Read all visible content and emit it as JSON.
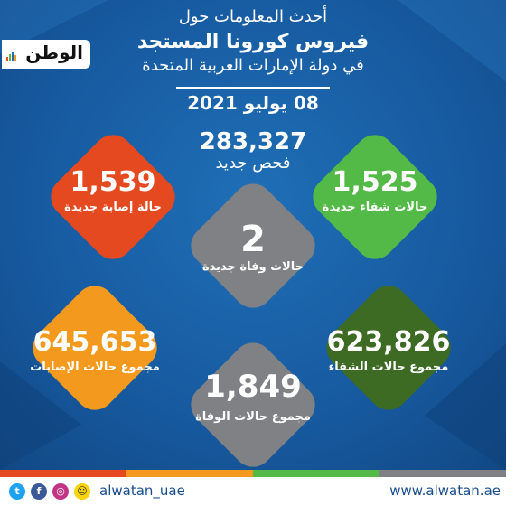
{
  "header": {
    "line1": "أحدث المعلومات حول",
    "line2": "فيروس كورونا المستجد",
    "line3": "في دولة الإمارات العربية المتحدة",
    "date": "08 يوليو 2021"
  },
  "logo": {
    "text": "الوطن"
  },
  "tests": {
    "value": "283,327",
    "label": "فحص جديد"
  },
  "cards": {
    "new_cases": {
      "value": "1,539",
      "label": "حالة إصابة جديدة",
      "color": "#e4491f"
    },
    "new_recovered": {
      "value": "1,525",
      "label": "حالات شفاء جديدة",
      "color": "#53b947"
    },
    "new_deaths": {
      "value": "2",
      "label": "حالات وفاة جديدة",
      "color": "#808184"
    },
    "total_cases": {
      "value": "645,653",
      "label": "مجموع حالات الإصابات",
      "color": "#f39a1e"
    },
    "total_recovered": {
      "value": "623,826",
      "label": "مجموع حالات الشفاء",
      "color": "#3d6b24"
    },
    "total_deaths": {
      "value": "1,849",
      "label": "مجموع حالات الوفاة",
      "color": "#808184"
    }
  },
  "footer": {
    "handle": "alwatan_uae",
    "website": "www.alwatan.ae",
    "icons": [
      "twitter-icon",
      "facebook-icon",
      "instagram-icon",
      "snapchat-icon"
    ]
  }
}
